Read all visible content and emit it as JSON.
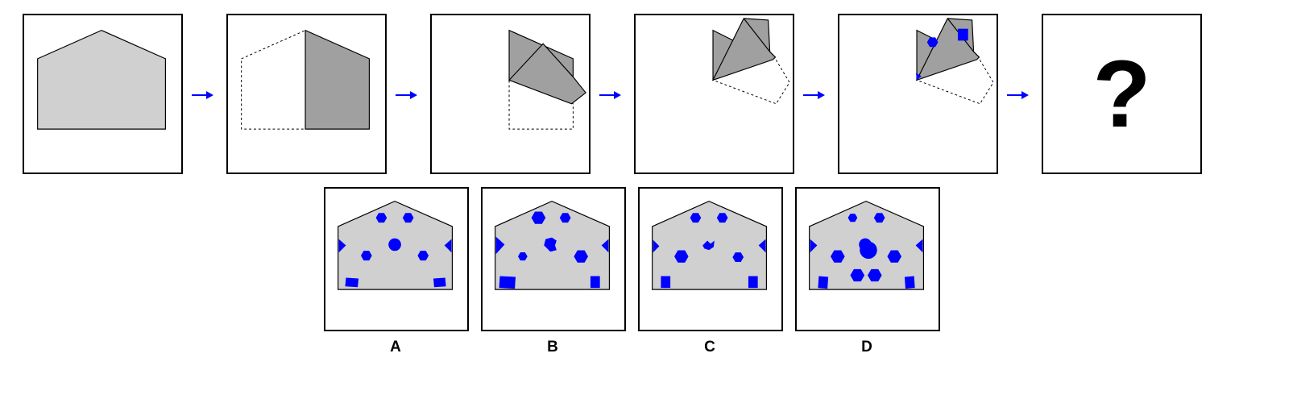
{
  "sequence": {
    "question_mark": "?"
  },
  "options": [
    {
      "label": "A"
    },
    {
      "label": "B"
    },
    {
      "label": "C"
    },
    {
      "label": "D"
    }
  ],
  "colors": {
    "paper_light": "#d0d0d0",
    "paper_folded": "#a0a0a0",
    "hole_blue": "#0000ff",
    "arrow_blue": "#0000ff",
    "outline": "#000000"
  },
  "icons": {
    "arrow": "right-arrow-icon",
    "hexagon_hole": "hexagon-icon",
    "square_hole": "square-icon",
    "triangle_hole": "triangle-icon",
    "circle_hole": "circle-icon"
  }
}
